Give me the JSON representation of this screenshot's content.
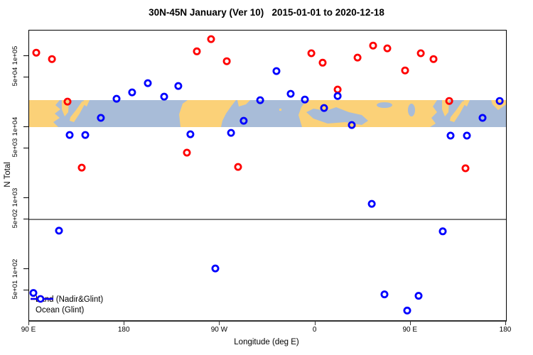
{
  "title": "30N-45N January (Ver 10)   2015-01-01 to 2020-12-18",
  "legend": {
    "items": [
      {
        "label": "Land (Nadir&Glint)",
        "color": "#ff0000"
      },
      {
        "label": "Ocean (Glint)",
        "color": "#0000ff"
      }
    ]
  },
  "chart_data": {
    "type": "scatter",
    "title": "30N-45N January (Ver 10)   2015-01-01 to 2020-12-18",
    "xlabel": "Longitude (deg E)",
    "ylabel": "N Total",
    "x_axis": {
      "note": "longitude wraps eastward starting at 90E; pos is degrees east of 90E",
      "range": [
        0,
        450
      ],
      "ticks": [
        {
          "pos": 0,
          "label": "90 E"
        },
        {
          "pos": 90,
          "label": "180"
        },
        {
          "pos": 180,
          "label": "90 W"
        },
        {
          "pos": 270,
          "label": "0"
        },
        {
          "pos": 360,
          "label": "90 E"
        },
        {
          "pos": 450,
          "label": "180"
        }
      ]
    },
    "y_axis": {
      "scale": "log",
      "range": [
        19,
        230000
      ],
      "ticks": [
        {
          "value": 100000,
          "label": "1e+05"
        },
        {
          "value": 50000,
          "label": "5e+04"
        },
        {
          "value": 10000,
          "label": "1e+04"
        },
        {
          "value": 5000,
          "label": "5e+03"
        },
        {
          "value": 1000,
          "label": "1e+03"
        },
        {
          "value": 500,
          "label": "5e+02"
        },
        {
          "value": 100,
          "label": "1e+02"
        },
        {
          "value": 50,
          "label": "5e+01"
        }
      ]
    },
    "ref_line": {
      "value": 500,
      "color": "#404040"
    },
    "map_band": {
      "top_value": 24000,
      "bottom_value": 10000,
      "land_color": "#fbd178",
      "ocean_color": "#a8bcd8"
    },
    "point_style": "open-circle",
    "series": [
      {
        "name": "Land (Nadir&Glint)",
        "color": "#ff0000",
        "points": [
          [
            6.7,
            112000
          ],
          [
            21.5,
            91000
          ],
          [
            36.2,
            22900
          ],
          [
            49.6,
            2690
          ],
          [
            148.9,
            4370
          ],
          [
            158.3,
            117000
          ],
          [
            171.7,
            174000
          ],
          [
            186.5,
            85000
          ],
          [
            197.2,
            2750
          ],
          [
            266.3,
            110000
          ],
          [
            277.0,
            81000
          ],
          [
            291.1,
            33900
          ],
          [
            309.9,
            95500
          ],
          [
            324.6,
            141000
          ],
          [
            338.0,
            129000
          ],
          [
            354.8,
            63000
          ],
          [
            369.6,
            110000
          ],
          [
            381.6,
            91000
          ],
          [
            396.4,
            23400
          ],
          [
            411.8,
            2630
          ]
        ]
      },
      {
        "name": "Ocean (Glint)",
        "color": "#0000ff",
        "points": [
          [
            4.0,
            46
          ],
          [
            28.2,
            347
          ],
          [
            38.2,
            7760
          ],
          [
            53.0,
            7760
          ],
          [
            67.7,
            13500
          ],
          [
            82.5,
            25100
          ],
          [
            97.2,
            30900
          ],
          [
            112.0,
            41700
          ],
          [
            127.4,
            26900
          ],
          [
            140.8,
            38000
          ],
          [
            152.2,
            7940
          ],
          [
            175.7,
            102
          ],
          [
            190.5,
            8320
          ],
          [
            202.5,
            12300
          ],
          [
            218.0,
            24000
          ],
          [
            233.4,
            61700
          ],
          [
            246.8,
            29500
          ],
          [
            260.2,
            24500
          ],
          [
            278.3,
            18600
          ],
          [
            291.1,
            27500
          ],
          [
            304.5,
            10700
          ],
          [
            323.3,
            830
          ],
          [
            335.3,
            44
          ],
          [
            356.8,
            26
          ],
          [
            367.5,
            42
          ],
          [
            390.3,
            340
          ],
          [
            397.7,
            7590
          ],
          [
            413.1,
            7590
          ],
          [
            427.9,
            13500
          ],
          [
            444.0,
            23400
          ]
        ]
      }
    ]
  }
}
